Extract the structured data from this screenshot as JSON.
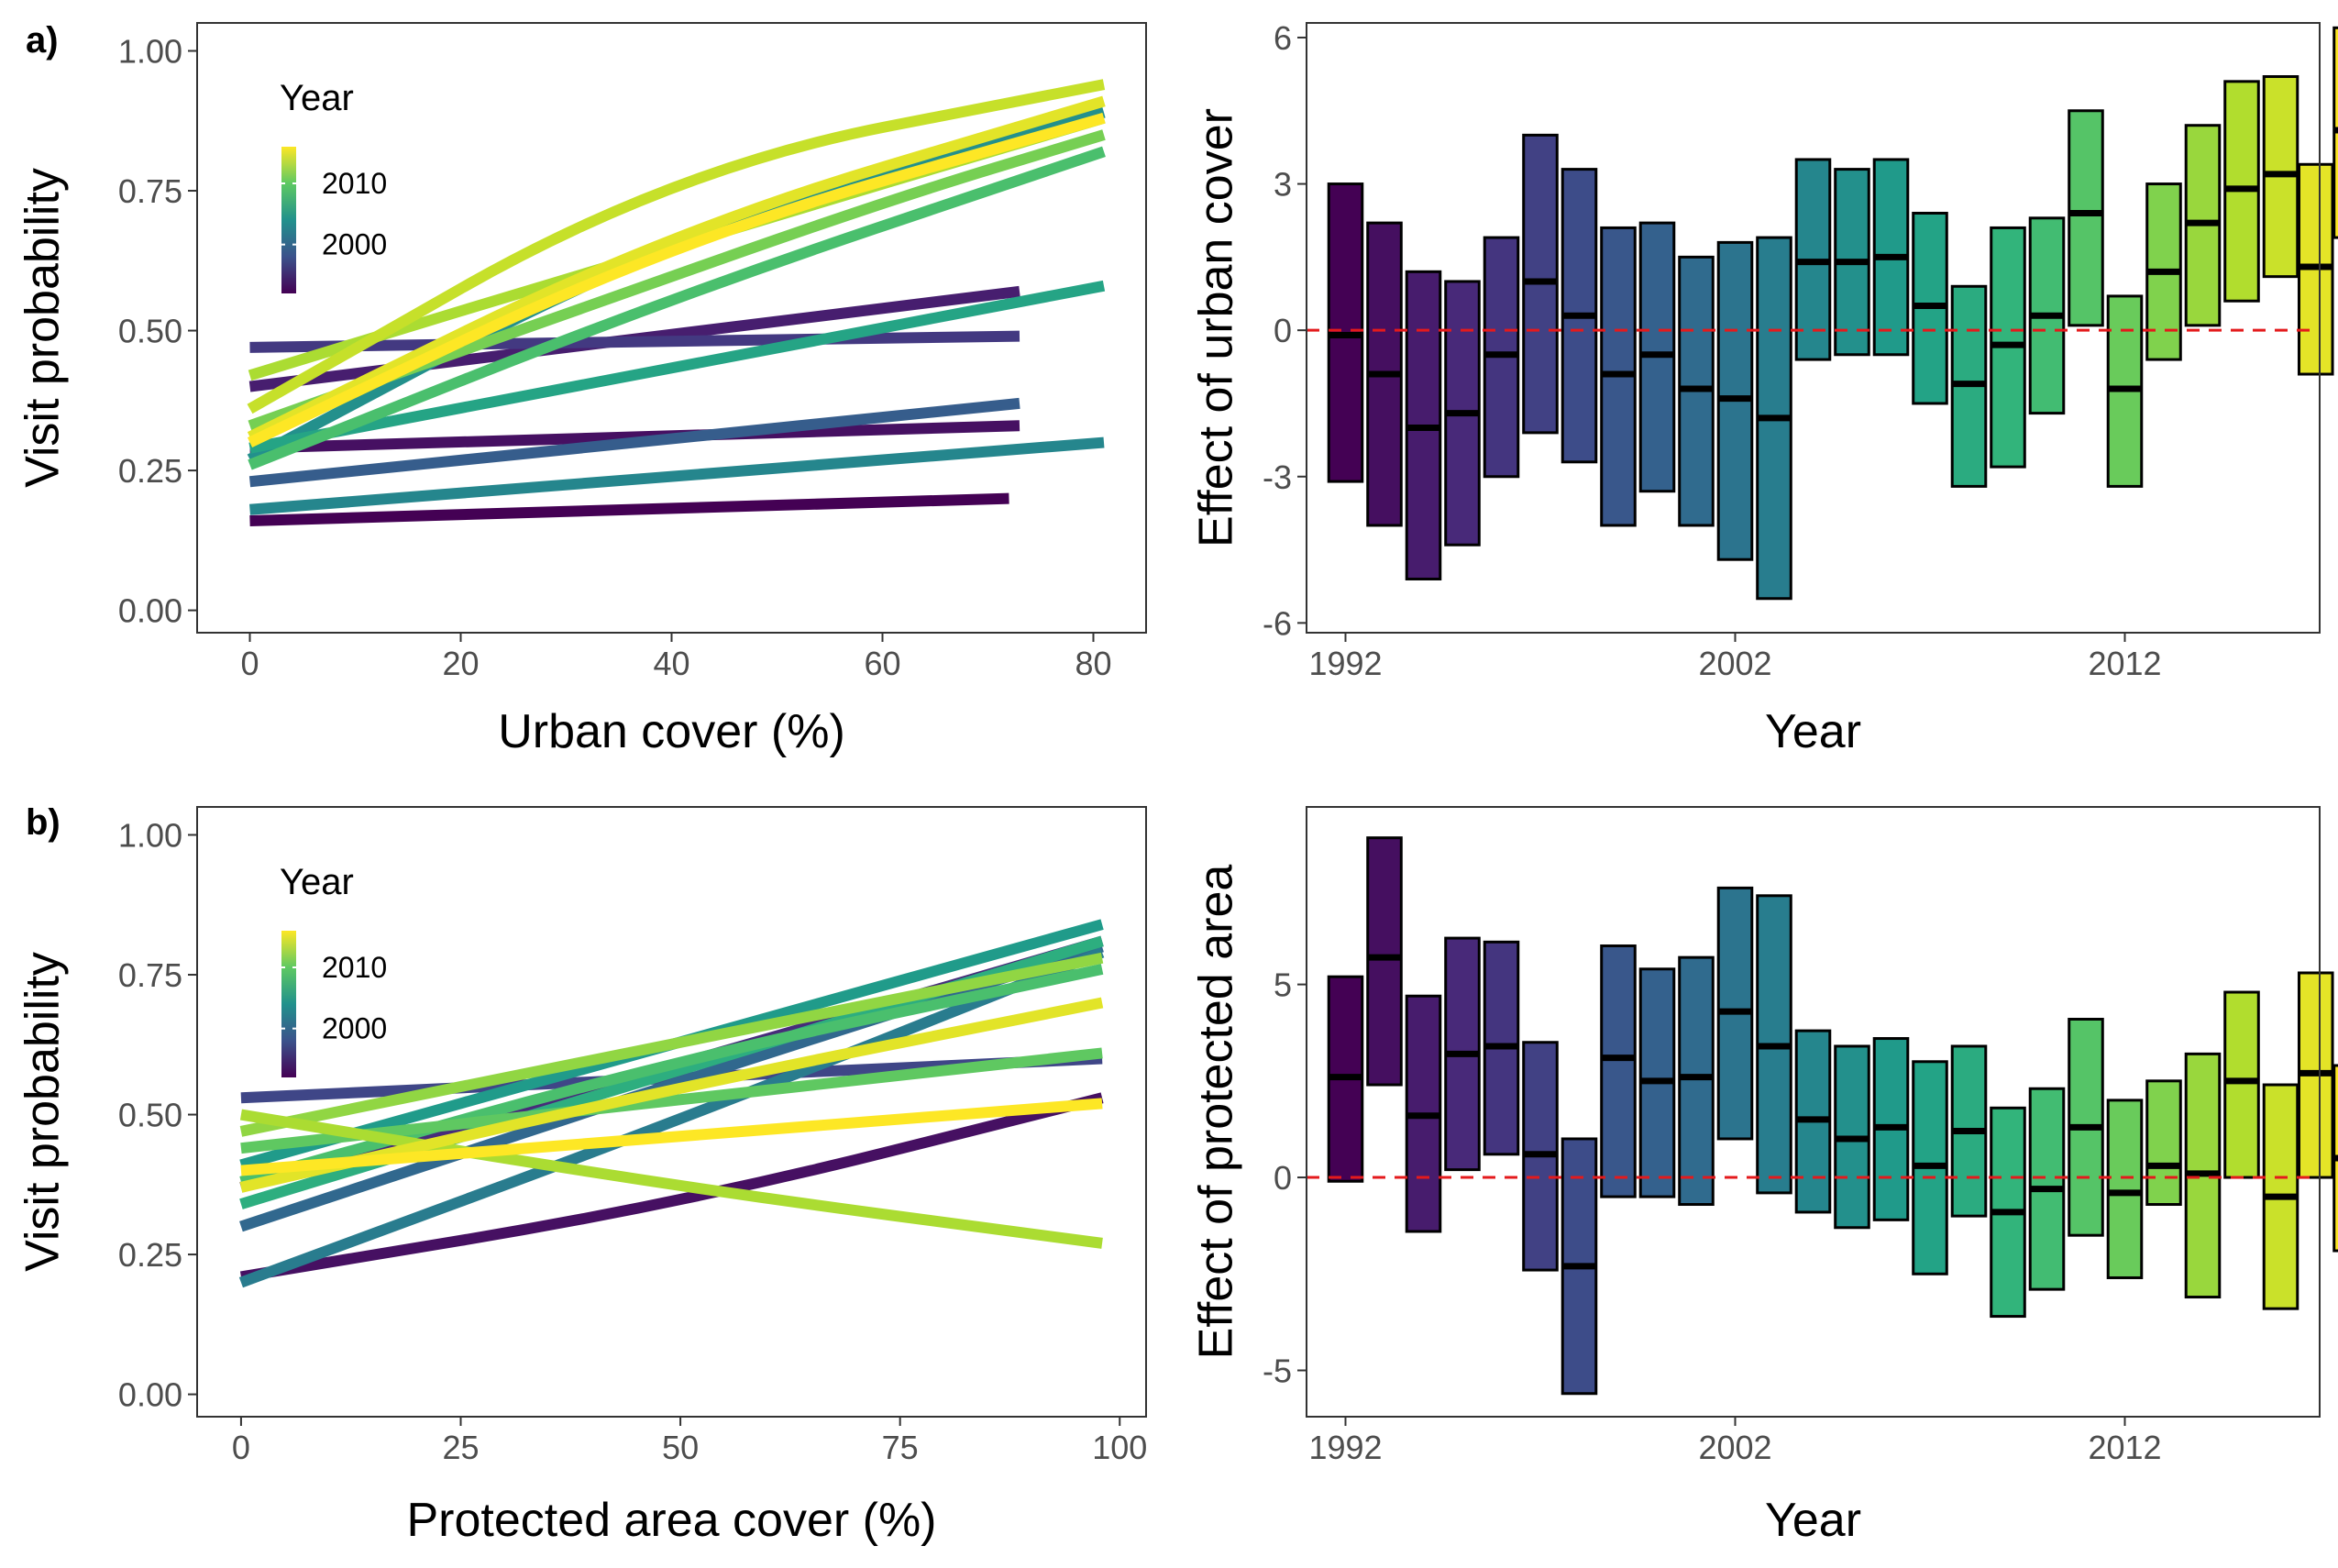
{
  "panel_labels": {
    "a": "a)",
    "b": "b)"
  },
  "colors": {
    "reference_line": "#e41a1c",
    "panel_border": "#333333",
    "tick_text": "#4d4d4d",
    "axis_title": "#000000"
  },
  "chart_data": [
    {
      "id": "a_left",
      "type": "line",
      "xlabel": "Urban cover (%)",
      "ylabel": "Visit probability",
      "xlim": [
        -5,
        85
      ],
      "ylim": [
        -0.04,
        1.05
      ],
      "xticks": [
        0,
        20,
        40,
        60,
        80
      ],
      "yticks": [
        0.0,
        0.25,
        0.5,
        0.75,
        1.0
      ],
      "ytick_labels": [
        "0.00",
        "0.25",
        "0.50",
        "0.75",
        "1.00"
      ],
      "grid": false,
      "legend": {
        "title": "Year",
        "type": "colorbar",
        "placement": "top-left",
        "labels": [
          "2010",
          "2000"
        ],
        "label_years": [
          2010,
          2000
        ],
        "range": [
          1992,
          2016
        ]
      },
      "series": [
        {
          "year": 1992,
          "x": [
            0,
            72
          ],
          "y": [
            0.16,
            0.2
          ]
        },
        {
          "year": 1993,
          "x": [
            0,
            73
          ],
          "y": [
            0.29,
            0.33
          ]
        },
        {
          "year": 1994,
          "x": [
            0,
            73
          ],
          "y": [
            0.4,
            0.57
          ]
        },
        {
          "year": 1996,
          "x": [
            0,
            73
          ],
          "y": [
            0.47,
            0.49
          ]
        },
        {
          "year": 1999,
          "x": [
            0,
            73
          ],
          "y": [
            0.23,
            0.37
          ]
        },
        {
          "year": 2003,
          "x": [
            0,
            81
          ],
          "y": [
            0.18,
            0.3
          ]
        },
        {
          "year": 2004,
          "x": [
            0,
            40,
            81
          ],
          "y": [
            0.27,
            0.67,
            0.89
          ]
        },
        {
          "year": 2006,
          "x": [
            0,
            81
          ],
          "y": [
            0.29,
            0.58
          ]
        },
        {
          "year": 2009,
          "x": [
            0,
            40,
            81
          ],
          "y": [
            0.26,
            0.56,
            0.82
          ]
        },
        {
          "year": 2011,
          "x": [
            0,
            30,
            60,
            81
          ],
          "y": [
            0.33,
            0.53,
            0.73,
            0.85
          ]
        },
        {
          "year": 2013,
          "x": [
            0,
            40,
            81
          ],
          "y": [
            0.42,
            0.65,
            0.88
          ]
        },
        {
          "year": 2014,
          "x": [
            0,
            40,
            81
          ],
          "y": [
            0.36,
            0.79,
            0.94
          ]
        },
        {
          "year": 2015,
          "x": [
            0,
            40,
            81
          ],
          "y": [
            0.31,
            0.68,
            0.91
          ]
        },
        {
          "year": 2016,
          "x": [
            0,
            40,
            81
          ],
          "y": [
            0.3,
            0.66,
            0.88
          ]
        }
      ]
    },
    {
      "id": "a_right",
      "type": "bar",
      "xlabel": "Year",
      "ylabel": "Effect of urban cover",
      "xlim": [
        1991.0,
        2017.0
      ],
      "ylim": [
        -6.2,
        6.3
      ],
      "xticks": [
        1992,
        2002,
        2012
      ],
      "yticks": [
        -6,
        -3,
        0,
        3,
        6
      ],
      "ytick_labels": [
        "-6",
        "-3",
        "0",
        "3",
        "6"
      ],
      "grid": false,
      "reference_line": 0,
      "years": [
        1992,
        1993,
        1994,
        1995,
        1996,
        1997,
        1998,
        1999,
        2000,
        2001,
        2002,
        2003,
        2004,
        2005,
        2006,
        2007,
        2008,
        2009,
        2010,
        2011,
        2012,
        2013,
        2014,
        2015,
        2016
      ],
      "lower": [
        -3.1,
        -4.0,
        -5.1,
        -4.4,
        -3.0,
        -2.1,
        -2.7,
        -4.0,
        -3.3,
        -4.0,
        -4.7,
        -5.5,
        -0.6,
        -0.5,
        -0.5,
        -1.5,
        -3.2,
        -2.8,
        -1.7,
        0.1,
        -3.2,
        -0.6,
        0.1,
        0.6,
        1.1
      ],
      "estimate": [
        -0.1,
        -0.9,
        -2.0,
        -1.7,
        -0.5,
        1.0,
        0.3,
        -0.9,
        -0.5,
        -1.2,
        -1.4,
        -1.8,
        1.4,
        1.4,
        1.5,
        0.5,
        -1.1,
        -0.3,
        0.3,
        2.4,
        -1.2,
        1.2,
        2.2,
        2.9,
        3.2
      ],
      "upper": [
        3.0,
        2.2,
        1.2,
        1.0,
        1.9,
        4.0,
        3.3,
        2.1,
        2.2,
        1.5,
        1.8,
        1.9,
        3.5,
        3.3,
        3.5,
        2.4,
        0.9,
        2.1,
        2.3,
        4.5,
        0.7,
        3.0,
        4.2,
        5.1,
        5.2
      ],
      "extra_bar": {
        "year": 2016.9,
        "lower": -0.9,
        "estimate": 1.3,
        "upper": 3.4
      },
      "extra_bar2": {
        "year": 2017.8,
        "lower": 1.9,
        "estimate": 4.1,
        "upper": 6.2
      }
    },
    {
      "id": "b_left",
      "type": "line",
      "xlabel": "Protected area cover (%)",
      "ylabel": "Visit probability",
      "xlim": [
        -5,
        103
      ],
      "ylim": [
        -0.04,
        1.05
      ],
      "xticks": [
        0,
        25,
        50,
        75,
        100
      ],
      "yticks": [
        0.0,
        0.25,
        0.5,
        0.75,
        1.0
      ],
      "ytick_labels": [
        "0.00",
        "0.25",
        "0.50",
        "0.75",
        "1.00"
      ],
      "grid": false,
      "legend": {
        "title": "Year",
        "type": "colorbar",
        "placement": "top-left",
        "labels": [
          "2010",
          "2000"
        ],
        "label_years": [
          2010,
          2000
        ],
        "range": [
          1992,
          2016
        ]
      },
      "series": [
        {
          "year": 1993,
          "x": [
            0,
            50,
            98
          ],
          "y": [
            0.21,
            0.34,
            0.53
          ]
        },
        {
          "year": 1995,
          "x": [
            0,
            50,
            98
          ],
          "y": [
            0.37,
            0.59,
            0.81
          ]
        },
        {
          "year": 1997,
          "x": [
            0,
            98
          ],
          "y": [
            0.53,
            0.6
          ]
        },
        {
          "year": 2000,
          "x": [
            0,
            50,
            98
          ],
          "y": [
            0.3,
            0.56,
            0.8
          ]
        },
        {
          "year": 2002,
          "x": [
            0,
            50,
            98
          ],
          "y": [
            0.2,
            0.49,
            0.79
          ]
        },
        {
          "year": 2005,
          "x": [
            0,
            50,
            98
          ],
          "y": [
            0.41,
            0.63,
            0.84
          ]
        },
        {
          "year": 2007,
          "x": [
            0,
            50,
            98
          ],
          "y": [
            0.34,
            0.58,
            0.81
          ]
        },
        {
          "year": 2009,
          "x": [
            0,
            50,
            98
          ],
          "y": [
            0.38,
            0.6,
            0.76
          ]
        },
        {
          "year": 2010,
          "x": [
            0,
            98
          ],
          "y": [
            0.44,
            0.61
          ]
        },
        {
          "year": 2012,
          "x": [
            0,
            50,
            98
          ],
          "y": [
            0.47,
            0.63,
            0.78
          ]
        },
        {
          "year": 2013,
          "x": [
            0,
            50,
            98
          ],
          "y": [
            0.5,
            0.37,
            0.27
          ]
        },
        {
          "year": 2015,
          "x": [
            0,
            50,
            98
          ],
          "y": [
            0.37,
            0.55,
            0.7
          ]
        },
        {
          "year": 2016,
          "x": [
            0,
            98
          ],
          "y": [
            0.4,
            0.52
          ]
        }
      ]
    },
    {
      "id": "b_right",
      "type": "bar",
      "xlabel": "Year",
      "ylabel": "Effect of protected area",
      "xlim": [
        1991.0,
        2017.0
      ],
      "ylim": [
        -6.2,
        9.6
      ],
      "xticks": [
        1992,
        2002,
        2012
      ],
      "yticks": [
        -5,
        0,
        5
      ],
      "ytick_labels": [
        "-5",
        "0",
        "5"
      ],
      "grid": false,
      "reference_line": 0,
      "years": [
        1992,
        1993,
        1994,
        1995,
        1996,
        1997,
        1998,
        1999,
        2000,
        2001,
        2002,
        2003,
        2004,
        2005,
        2006,
        2007,
        2008,
        2009,
        2010,
        2011,
        2012,
        2013,
        2014,
        2015,
        2016
      ],
      "lower": [
        -0.1,
        2.4,
        -1.4,
        0.2,
        0.6,
        -2.4,
        -5.6,
        -0.5,
        -0.5,
        -0.7,
        1.0,
        -0.4,
        -0.9,
        -1.3,
        -1.1,
        -2.5,
        -1.0,
        -3.6,
        -2.9,
        -1.5,
        -2.6,
        -0.7,
        -3.1,
        0.0,
        -3.4
      ],
      "estimate": [
        2.6,
        5.7,
        1.6,
        3.2,
        3.4,
        0.6,
        -2.3,
        3.1,
        2.5,
        2.6,
        4.3,
        3.4,
        1.5,
        1.0,
        1.3,
        0.3,
        1.2,
        -0.9,
        -0.3,
        1.3,
        -0.4,
        0.3,
        0.1,
        2.5,
        -0.5
      ],
      "upper": [
        5.2,
        8.8,
        4.7,
        6.2,
        6.1,
        3.5,
        1.0,
        6.0,
        5.4,
        5.7,
        7.5,
        7.3,
        3.8,
        3.4,
        3.6,
        3.0,
        3.4,
        1.8,
        2.3,
        4.1,
        2.0,
        2.5,
        3.2,
        4.8,
        2.4
      ],
      "extra_bar": {
        "year": 2016.9,
        "lower": 0.0,
        "estimate": 2.7,
        "upper": 5.3
      },
      "extra_bar2": {
        "year": 2017.8,
        "lower": -1.9,
        "estimate": 0.5,
        "upper": 2.9
      }
    }
  ]
}
